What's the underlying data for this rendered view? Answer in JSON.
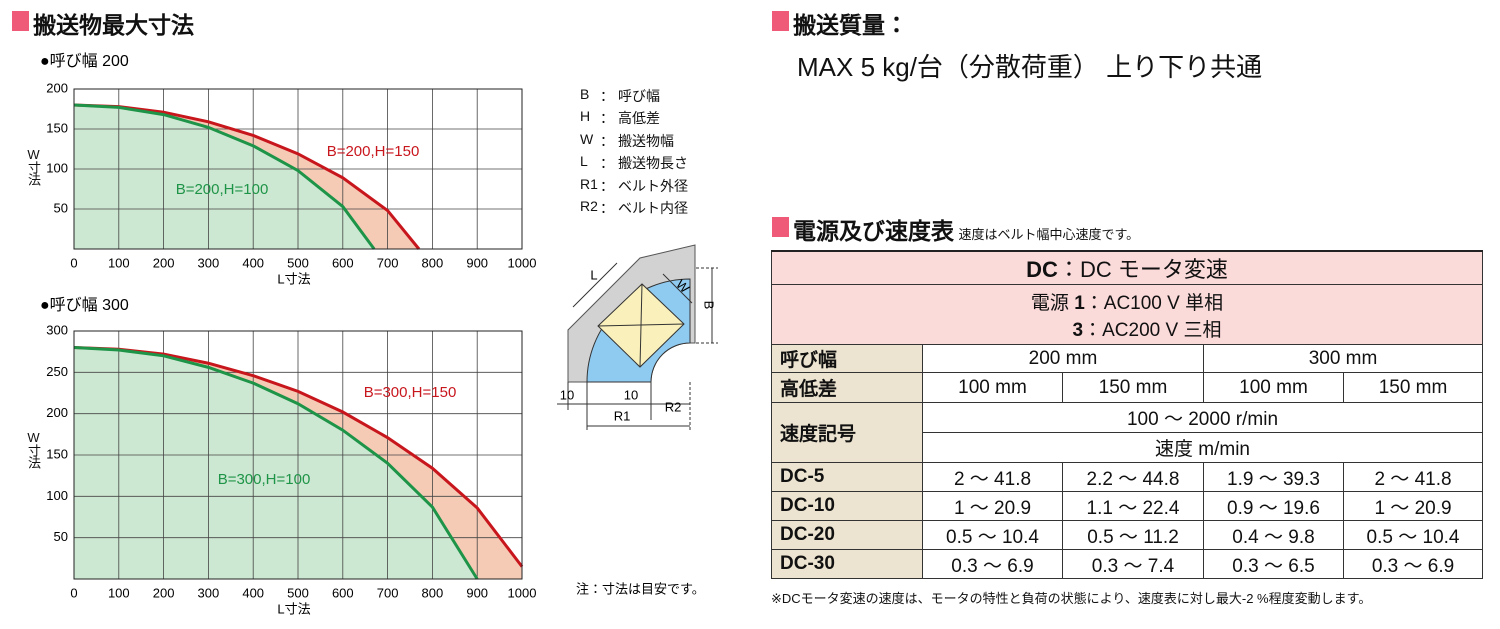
{
  "left_header": "搬送物最大寸法",
  "chart_data": [
    {
      "type": "line",
      "title": "●呼び幅 200",
      "xlabel": "L寸法",
      "ylabel": "W寸法",
      "xlim": [
        0,
        1000
      ],
      "ylim": [
        0,
        200
      ],
      "xticks": [
        0,
        100,
        200,
        300,
        400,
        500,
        600,
        700,
        800,
        900,
        1000
      ],
      "yticks": [
        50,
        100,
        150,
        200
      ],
      "grid": true,
      "series": [
        {
          "name": "B=200,H=150",
          "color": "#c8161d",
          "fill": "#f6cbb6",
          "x": [
            0,
            100,
            200,
            300,
            400,
            500,
            600,
            700,
            770
          ],
          "values": [
            180,
            178,
            171,
            159,
            142,
            119,
            89,
            48,
            0
          ]
        },
        {
          "name": "B=200,H=100",
          "color": "#1e9448",
          "fill": "#cde8d2",
          "x": [
            0,
            100,
            200,
            300,
            400,
            500,
            600,
            670
          ],
          "values": [
            180,
            177,
            168,
            152,
            129,
            98,
            53,
            0
          ]
        }
      ]
    },
    {
      "type": "line",
      "title": "●呼び幅 300",
      "xlabel": "L寸法",
      "ylabel": "W寸法",
      "xlim": [
        0,
        1000
      ],
      "ylim": [
        0,
        300
      ],
      "xticks": [
        0,
        100,
        200,
        300,
        400,
        500,
        600,
        700,
        800,
        900,
        1000
      ],
      "yticks": [
        50,
        100,
        150,
        200,
        250,
        300
      ],
      "grid": true,
      "series": [
        {
          "name": "B=300,H=150",
          "color": "#c8161d",
          "fill": "#f6cbb6",
          "x": [
            0,
            100,
            200,
            300,
            400,
            500,
            600,
            700,
            800,
            900,
            1000
          ],
          "values": [
            280,
            278,
            272,
            261,
            246,
            227,
            202,
            171,
            134,
            86,
            15
          ]
        },
        {
          "name": "B=300,H=100",
          "color": "#1e9448",
          "fill": "#cde8d2",
          "x": [
            0,
            100,
            200,
            300,
            400,
            500,
            600,
            700,
            800,
            900
          ],
          "values": [
            280,
            277,
            270,
            256,
            237,
            212,
            180,
            140,
            87,
            0
          ]
        }
      ]
    }
  ],
  "symbols": {
    "separator": "：",
    "items": [
      {
        "key": "B",
        "text": "呼び幅"
      },
      {
        "key": "H",
        "text": "高低差"
      },
      {
        "key": "W",
        "text": "搬送物幅"
      },
      {
        "key": "L",
        "text": "搬送物長さ"
      },
      {
        "key": "R1",
        "text": "ベルト外径"
      },
      {
        "key": "R2",
        "text": "ベルト内径"
      }
    ]
  },
  "diagram": {
    "labels": [
      "L",
      "W",
      "B",
      "10",
      "10",
      "R1",
      "R2"
    ]
  },
  "note": "注：寸法は目安です。",
  "payload": {
    "title": "搬送質量：",
    "text": "MAX 5 kg/台（分散荷重） 上り下り共通"
  },
  "speed": {
    "title": "電源及び速度表",
    "subtitle": "速度はベルト幅中心速度です。",
    "table": {
      "motor": {
        "code": "DC",
        "text": "：DC モータ変速"
      },
      "power": {
        "label": "電源",
        "lines": [
          {
            "code": "1",
            "text": "：AC100 V 単相"
          },
          {
            "code": "3",
            "text": "：AC200 V 三相"
          }
        ]
      },
      "width": {
        "label": "呼び幅",
        "cells": [
          "200 mm",
          "300 mm"
        ]
      },
      "height": {
        "label": "高低差",
        "cells": [
          "100 mm",
          "150 mm",
          "100 mm",
          "150 mm"
        ]
      },
      "speed_code": {
        "label": "速度記号",
        "rows": [
          "100 ～ 2000 r/min",
          "速度 m/min"
        ]
      },
      "rows": [
        {
          "label": "DC-5",
          "cells": [
            "2 ～ 41.8",
            "2.2 ～ 44.8",
            "1.9 ～ 39.3",
            "2 ～ 41.8"
          ]
        },
        {
          "label": "DC-10",
          "cells": [
            "1 ～ 20.9",
            "1.1 ～ 22.4",
            "0.9 ～ 19.6",
            "1 ～ 20.9"
          ]
        },
        {
          "label": "DC-20",
          "cells": [
            "0.5 ～ 10.4",
            "0.5 ～ 11.2",
            "0.4 ～ 9.8",
            "0.5 ～ 10.4"
          ]
        },
        {
          "label": "DC-30",
          "cells": [
            "0.3 ～ 6.9",
            "0.3 ～ 7.4",
            "0.3 ～ 6.5",
            "0.3 ～ 6.9"
          ]
        }
      ]
    },
    "footnote": "※DCモータ変速の速度は、モータの特性と負荷の状態により、速度表に対し最大-2 %程度変動します。"
  }
}
